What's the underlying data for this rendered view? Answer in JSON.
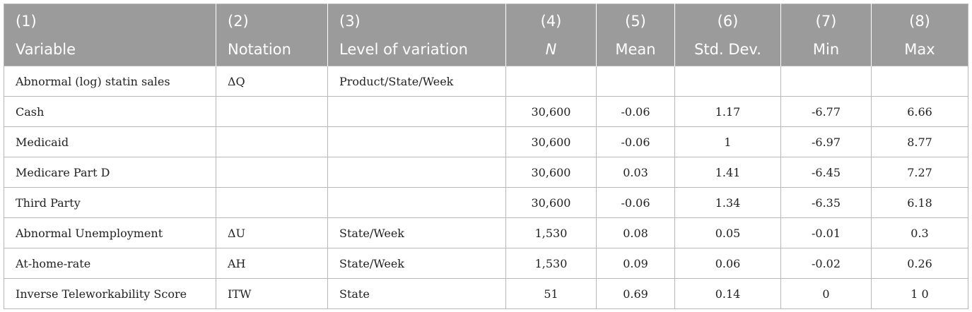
{
  "columns": [
    {
      "num": "(1)",
      "label": "Variable"
    },
    {
      "num": "(2)",
      "label": "Notation"
    },
    {
      "num": "(3)",
      "label": "Level of variation"
    },
    {
      "num": "(4)",
      "label": "N"
    },
    {
      "num": "(5)",
      "label": "Mean"
    },
    {
      "num": "(6)",
      "label": "Std. Dev."
    },
    {
      "num": "(7)",
      "label": "Min"
    },
    {
      "num": "(8)",
      "label": "Max"
    }
  ],
  "rows": [
    [
      "Abnormal (log) statin sales",
      "ΔQ",
      "Product/State/Week",
      "",
      "",
      "",
      "",
      ""
    ],
    [
      "Cash",
      "",
      "",
      "30,600",
      "-0.06",
      "1.17",
      "-6.77",
      "6.66"
    ],
    [
      "Medicaid",
      "",
      "",
      "30,600",
      "-0.06",
      "1",
      "-6.97",
      "8.77"
    ],
    [
      "Medicare Part D",
      "",
      "",
      "30,600",
      "0.03",
      "1.41",
      "-6.45",
      "7.27"
    ],
    [
      "Third Party",
      "",
      "",
      "30,600",
      "-0.06",
      "1.34",
      "-6.35",
      "6.18"
    ],
    [
      "Abnormal Unemployment",
      "ΔU",
      "State/Week",
      "1,530",
      "0.08",
      "0.05",
      "-0.01",
      "0.3"
    ],
    [
      "At-home-rate",
      "AH",
      "State/Week",
      "1,530",
      "0.09",
      "0.06",
      "-0.02",
      "0.26"
    ],
    [
      "Inverse Teleworkability Score",
      "ITW",
      "State",
      "51",
      "0.69",
      "0.14",
      "0",
      "1 0"
    ]
  ]
}
